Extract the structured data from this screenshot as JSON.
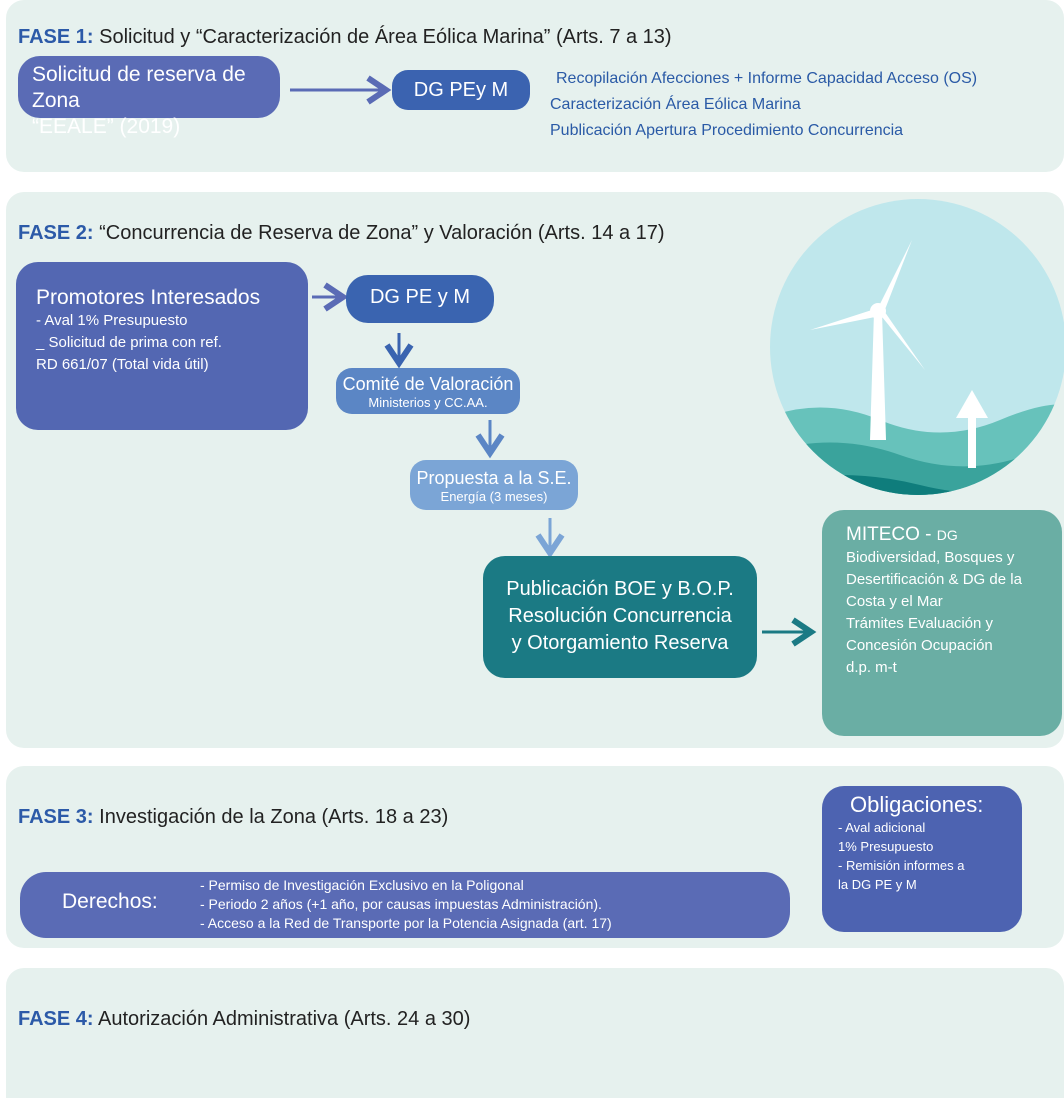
{
  "phases": [
    {
      "label": "FASE 1:",
      "title": "Solicitud y “Caracterización de Área Eólica Marina” (Arts. 7 a 13)"
    },
    {
      "label": "FASE 2:",
      "title": "“Concurrencia de Reserva de Zona” y Valoración (Arts. 14 a 17)"
    },
    {
      "label": "FASE 3:",
      "title": "Investigación de la Zona (Arts. 18 a 23)"
    },
    {
      "label": "FASE 4:",
      "title": "Autorización Administrativa (Arts. 24 a 30)"
    }
  ],
  "phase1": {
    "request": [
      "Solicitud de reserva de Zona",
      "“EEALE” (2019)"
    ],
    "authority": "DG PEy M",
    "steps": [
      "Recopilación Afecciones + Informe Capacidad Acceso (OS)",
      "Caracterización Área Eólica Marina",
      "Publicación Apertura Procedimiento Concurrencia"
    ]
  },
  "phase2": {
    "promoters": {
      "title": "Promotores Interesados",
      "lines": [
        "- Aval 1% Presupuesto",
        "_ Solicitud de prima con ref.",
        "RD 661/07 (Total vida útil)"
      ]
    },
    "authority": "DG PE y M",
    "committee": {
      "title": "Comité de Valoración",
      "subtitle": "Ministerios y CC.AA."
    },
    "proposal": {
      "title": "Propuesta a la S.E.",
      "subtitle": "Energía (3 meses)"
    },
    "publication": [
      "Publicación BOE y B.O.P.",
      "Resolución Concurrencia",
      "y Otorgamiento Reserva"
    ],
    "miteco": {
      "title": "MITECO - ",
      "title_small": "DG",
      "lines": [
        "Biodiversidad, Bosques y",
        "Desertificación & DG de la",
        "Costa y el Mar",
        "Trámites Evaluación y",
        "Concesión Ocupación",
        "d.p. m-t"
      ]
    }
  },
  "phase3": {
    "rights_label": "Derechos:",
    "rights": [
      "- Permiso de Investigación Exclusivo en la Poligonal",
      "- Periodo 2 años (+1 año, por causas impuestas Administración).",
      "- Acceso a la Red de Transporte por la Potencia Asignada (art. 17)"
    ],
    "obligations_title": "Obligaciones:",
    "obligations": [
      "- Aval adicional",
      "1% Presupuesto",
      "- Remisión informes a",
      "la DG PE y M"
    ]
  }
}
